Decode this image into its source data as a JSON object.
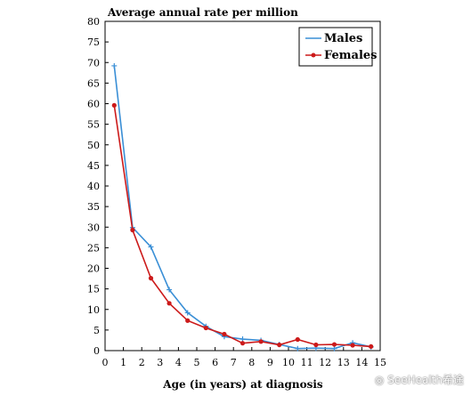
{
  "chart_data": {
    "type": "line",
    "title": "Average annual rate per million",
    "xlabel": "Age (in years) at diagnosis",
    "ylabel": "",
    "xlim": [
      0,
      15
    ],
    "ylim": [
      0,
      80
    ],
    "xticks": [
      "0",
      "1",
      "2",
      "3",
      "4",
      "5",
      "6",
      "7",
      "8",
      "9",
      "10",
      "11",
      "12",
      "13",
      "14",
      "15"
    ],
    "yticks": [
      "0",
      "5",
      "10",
      "15",
      "20",
      "25",
      "30",
      "35",
      "40",
      "45",
      "50",
      "55",
      "60",
      "65",
      "70",
      "75",
      "80"
    ],
    "legend_position": "top-right",
    "grid": false,
    "series": [
      {
        "name": "Males",
        "color": "#3a8fd6",
        "marker": "plus",
        "x": [
          0.5,
          1.5,
          2.5,
          3.5,
          4.5,
          5.5,
          6.5,
          7.5,
          8.5,
          9.5,
          10.5,
          11.5,
          12.5,
          13.5,
          14.5
        ],
        "y": [
          69.2,
          29.9,
          25.2,
          14.8,
          9.2,
          5.9,
          3.4,
          2.8,
          2.5,
          1.5,
          0.5,
          0.6,
          0.5,
          1.9,
          0.9
        ]
      },
      {
        "name": "Females",
        "color": "#cc1a1a",
        "marker": "circle",
        "x": [
          0.5,
          1.5,
          2.5,
          3.5,
          4.5,
          5.5,
          6.5,
          7.5,
          8.5,
          9.5,
          10.5,
          11.5,
          12.5,
          13.5,
          14.5
        ],
        "y": [
          59.6,
          29.3,
          17.6,
          11.5,
          7.3,
          5.5,
          4.0,
          1.8,
          2.2,
          1.4,
          2.7,
          1.4,
          1.5,
          1.3,
          1.0
        ]
      }
    ]
  },
  "watermark": {
    "text": "SeeHealth希途",
    "icon": "wechat-icon"
  }
}
